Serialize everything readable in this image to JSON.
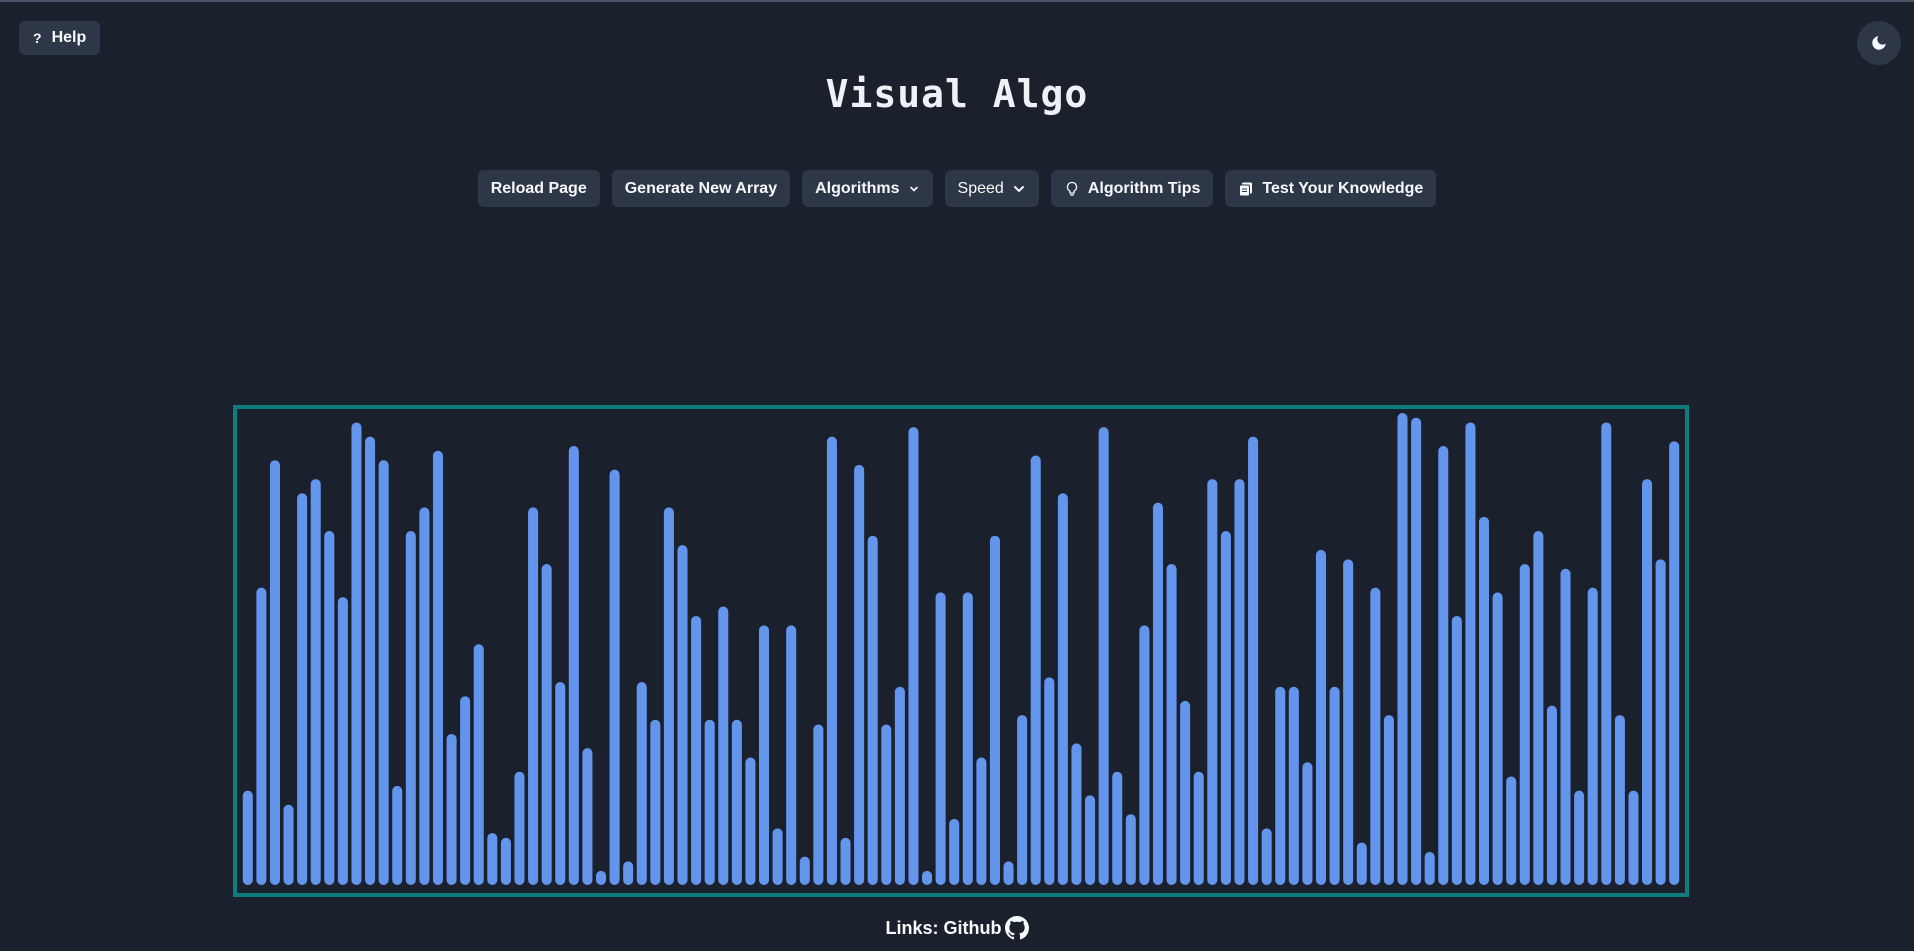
{
  "help": {
    "icon": "question-icon",
    "label": "Help"
  },
  "theme_toggle": {
    "icon": "moon-icon"
  },
  "title": "Visual Algo",
  "toolbar": {
    "reload": "Reload Page",
    "generate": "Generate New Array",
    "algorithms": "Algorithms",
    "speed": "Speed",
    "tips": "Algorithm Tips",
    "test": "Test Your Knowledge"
  },
  "bars": {
    "color": "#6495ed",
    "frame_color": "#0d7e7e",
    "max": 100,
    "values": [
      20,
      63,
      90,
      17,
      83,
      86,
      75,
      61,
      98,
      95,
      90,
      21,
      75,
      80,
      92,
      32,
      40,
      51,
      11,
      10,
      24,
      80,
      68,
      43,
      93,
      29,
      3,
      88,
      5,
      43,
      35,
      80,
      72,
      57,
      35,
      59,
      35,
      27,
      55,
      12,
      55,
      6,
      34,
      95,
      10,
      89,
      74,
      34,
      42,
      97,
      3,
      62,
      14,
      62,
      27,
      74,
      5,
      36,
      91,
      44,
      83,
      30,
      19,
      97,
      24,
      15,
      55,
      81,
      68,
      39,
      24,
      86,
      75,
      86,
      95,
      12,
      42,
      42,
      26,
      71,
      42,
      69,
      9,
      63,
      36,
      100,
      99,
      7,
      93,
      57,
      98,
      78,
      62,
      23,
      68,
      75,
      38,
      67,
      20,
      63,
      98,
      36,
      20,
      86,
      69,
      94
    ]
  },
  "footer": {
    "prefix": "Links: Github",
    "icon": "github-icon"
  }
}
